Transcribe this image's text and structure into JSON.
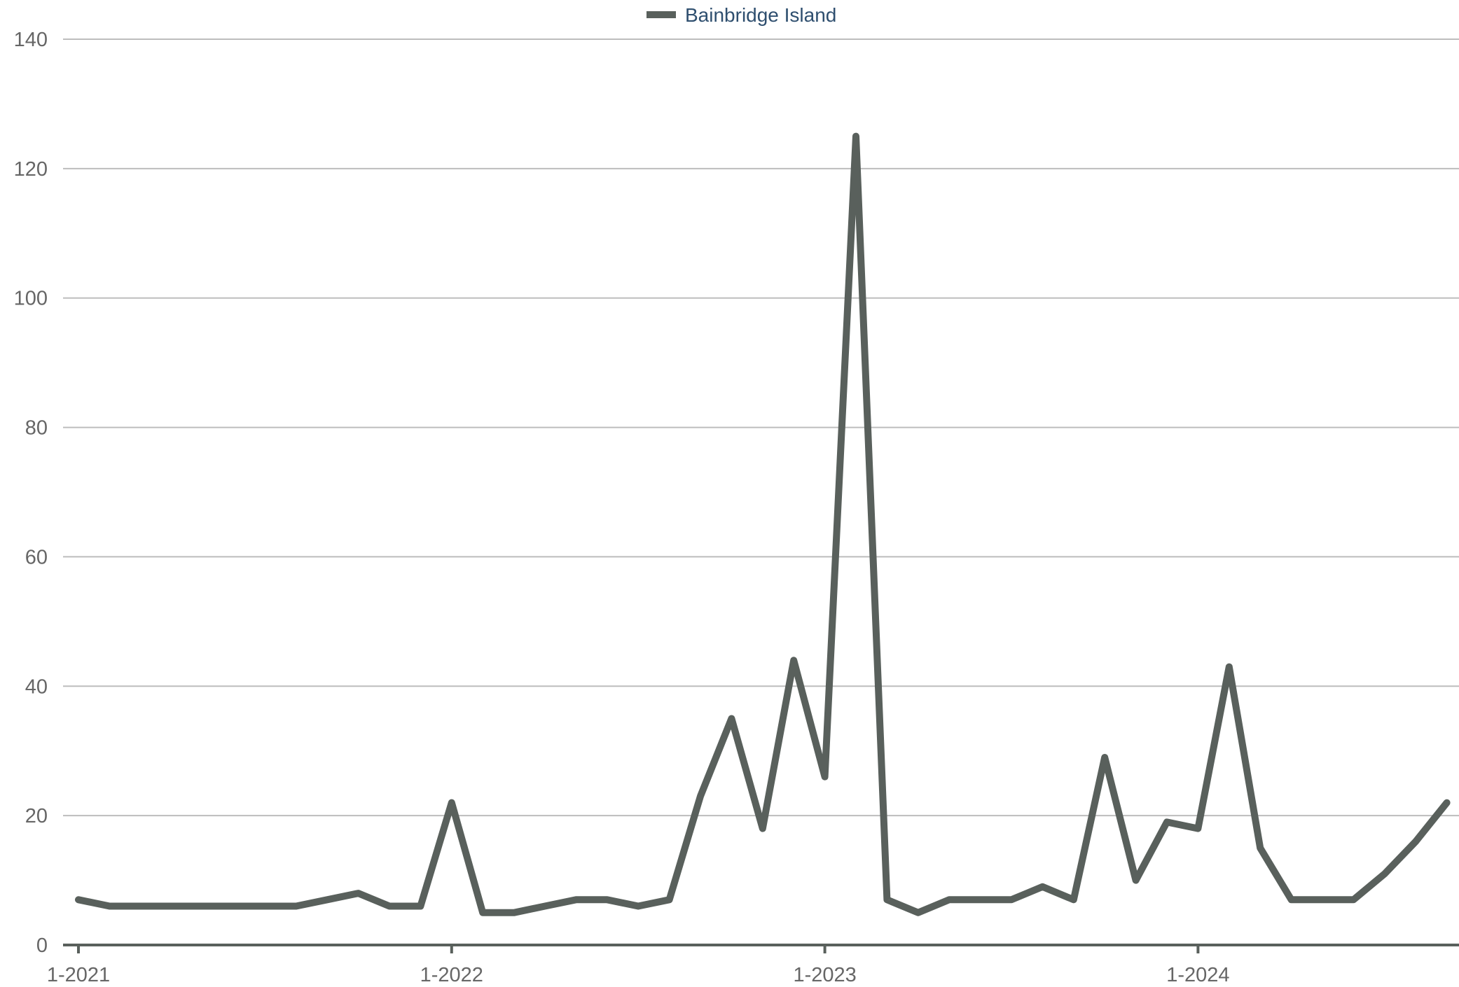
{
  "chart_data": {
    "type": "line",
    "legend": {
      "position": "top-center",
      "entries": [
        "Bainbridge Island"
      ]
    },
    "colors": {
      "series": "#59605c",
      "grid": "#bdbdbd",
      "axis": "#59605c",
      "tick_label": "#666666",
      "legend_label": "#2f4f6f"
    },
    "grid": true,
    "ylim": [
      0,
      140
    ],
    "y_ticks": [
      0,
      20,
      40,
      60,
      80,
      100,
      120,
      140
    ],
    "x_start": "2021-01",
    "x_end": "2024-09",
    "x_ticks": [
      {
        "month": "2021-01",
        "label": "1-2021"
      },
      {
        "month": "2022-01",
        "label": "1-2022"
      },
      {
        "month": "2023-01",
        "label": "1-2023"
      },
      {
        "month": "2024-01",
        "label": "1-2024"
      }
    ],
    "series": [
      {
        "name": "Bainbridge Island",
        "x": [
          "2021-01",
          "2021-02",
          "2021-03",
          "2021-04",
          "2021-05",
          "2021-06",
          "2021-07",
          "2021-08",
          "2021-09",
          "2021-10",
          "2021-11",
          "2021-12",
          "2022-01",
          "2022-02",
          "2022-03",
          "2022-04",
          "2022-05",
          "2022-06",
          "2022-07",
          "2022-08",
          "2022-09",
          "2022-10",
          "2022-11",
          "2022-12",
          "2023-01",
          "2023-02",
          "2023-03",
          "2023-04",
          "2023-05",
          "2023-06",
          "2023-07",
          "2023-08",
          "2023-09",
          "2023-10",
          "2023-11",
          "2023-12",
          "2024-01",
          "2024-02",
          "2024-03",
          "2024-04",
          "2024-05",
          "2024-06",
          "2024-07",
          "2024-08",
          "2024-09"
        ],
        "values": [
          7,
          6,
          6,
          6,
          6,
          6,
          6,
          6,
          7,
          8,
          6,
          6,
          22,
          5,
          5,
          6,
          7,
          7,
          6,
          7,
          23,
          35,
          18,
          44,
          26,
          125,
          7,
          5,
          7,
          7,
          7,
          9,
          7,
          29,
          10,
          19,
          18,
          43,
          15,
          7,
          7,
          7,
          11,
          16,
          22
        ]
      }
    ]
  }
}
